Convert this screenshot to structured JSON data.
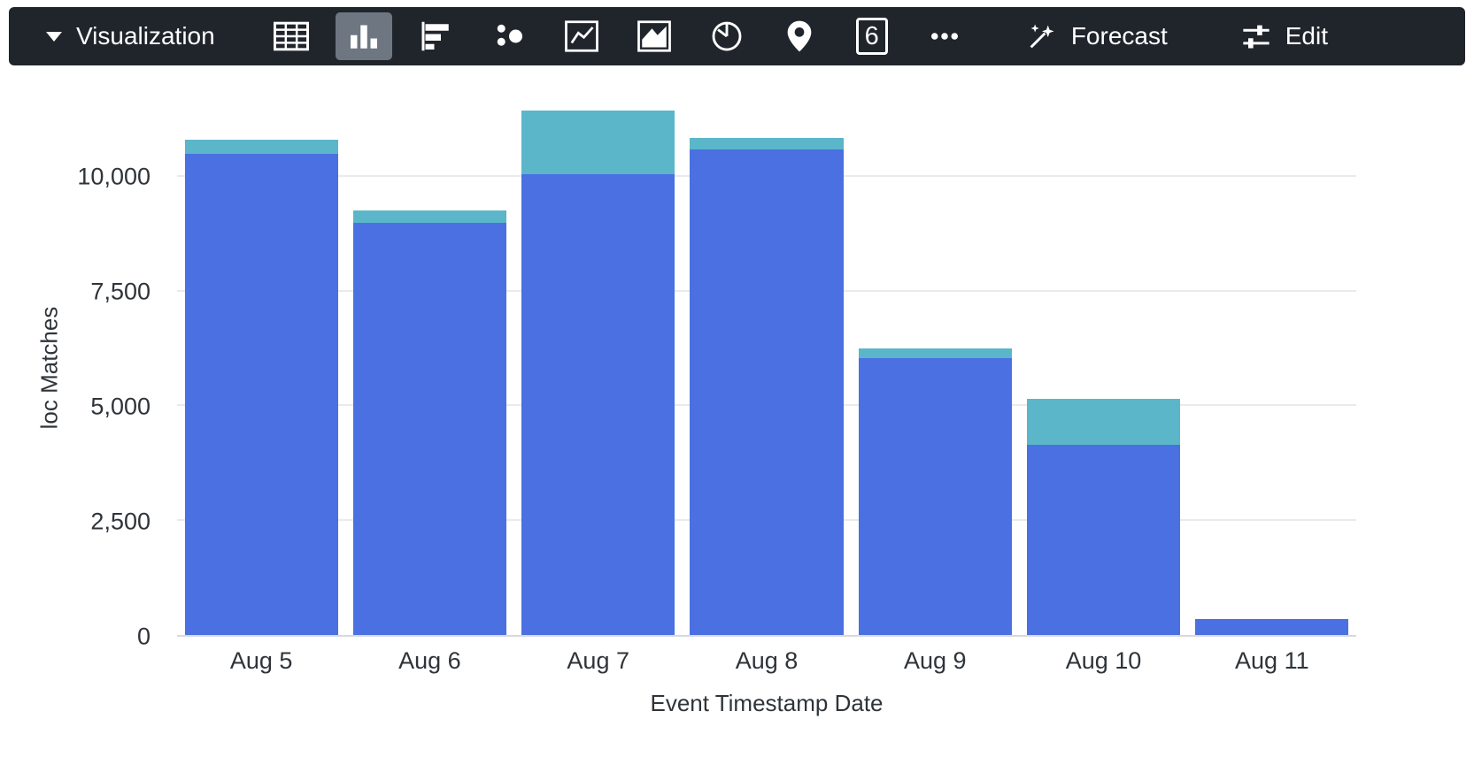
{
  "toolbar": {
    "visualization_label": "Visualization",
    "single_value_digit": "6",
    "forecast_label": "Forecast",
    "edit_label": "Edit",
    "selected_icon": "bar-chart-icon",
    "icon_names": [
      "table-icon",
      "bar-chart-icon",
      "horizontal-bar-chart-icon",
      "bubble-chart-icon",
      "line-chart-icon",
      "area-chart-icon",
      "pie-chart-icon",
      "map-pin-icon",
      "single-value-icon",
      "more-options-icon",
      "forecast-icon",
      "edit-sliders-icon",
      "caret-down-icon"
    ],
    "colors": {
      "background": "#20252c",
      "selected_tile": "#6d7681",
      "foreground": "#ffffff"
    }
  },
  "chart_data": {
    "type": "bar",
    "stacked": true,
    "categories": [
      "Aug 5",
      "Aug 6",
      "Aug 7",
      "Aug 8",
      "Aug 9",
      "Aug 10",
      "Aug 11"
    ],
    "series": [
      {
        "name": "series-1",
        "color": "#4a70e2",
        "values": [
          10500,
          9000,
          10050,
          10600,
          6050,
          4150,
          350
        ]
      },
      {
        "name": "series-2",
        "color": "#5ab6c8",
        "values": [
          320,
          270,
          1400,
          250,
          200,
          1000,
          0
        ]
      }
    ],
    "title": "",
    "xlabel": "Event Timestamp Date",
    "ylabel": "loc Matches",
    "yticks": [
      0,
      2500,
      5000,
      7500,
      10000
    ],
    "ytick_labels": [
      "0",
      "2,500",
      "5,000",
      "7,500",
      "10,000"
    ],
    "ylim": [
      0,
      11700
    ],
    "grid": true,
    "legend_position": "none"
  }
}
